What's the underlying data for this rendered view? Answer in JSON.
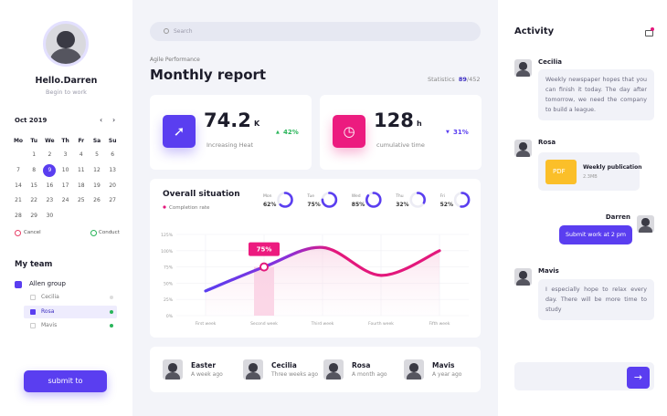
{
  "sidebar": {
    "greeting": "Hello.Darren",
    "subtitle": "Begin to work",
    "calendar": {
      "month": "Oct 2019",
      "weekdays": [
        "Mo",
        "Tu",
        "We",
        "Th",
        "Fr",
        "Sa",
        "Su"
      ],
      "days": [
        1,
        2,
        3,
        4,
        5,
        6,
        7,
        8,
        9,
        10,
        11,
        12,
        13,
        14,
        15,
        16,
        17,
        18,
        19,
        20,
        21,
        22,
        23,
        24,
        25,
        26,
        27,
        28,
        29,
        30
      ],
      "selected_day": 9,
      "cancel": "Cancel",
      "conduct": "Conduct"
    },
    "team": {
      "title": "My team",
      "group": "Allen group",
      "members": [
        "Cecilia",
        "Rosa",
        "Mavis"
      ],
      "selected_member": "Rosa"
    },
    "submit": "submit to"
  },
  "main": {
    "search_placeholder": "Search",
    "eyebrow": "Agile Performance",
    "title": "Monthly report",
    "statistics_label": "Statistics",
    "statistics_value": "89",
    "statistics_total": "/452",
    "cards": [
      {
        "value": "74.2",
        "unit": "K",
        "label": "Increasing Heat",
        "change": "42%",
        "direction": "up"
      },
      {
        "value": "128",
        "unit": "h",
        "label": "cumulative time",
        "change": "31%",
        "direction": "down"
      }
    ],
    "people": [
      {
        "name": "Easter",
        "time": "A week ago"
      },
      {
        "name": "Cecilia",
        "time": "Three weeks ago"
      },
      {
        "name": "Rosa",
        "time": "A month ago"
      },
      {
        "name": "Mavis",
        "time": "A year ago"
      }
    ]
  },
  "chart": {
    "type": "line",
    "title": "Overall situation",
    "legend": "Completion rate",
    "days": [
      {
        "day": "Mon",
        "value": 62,
        "label": "62%"
      },
      {
        "day": "Tue",
        "value": 75,
        "label": "75%"
      },
      {
        "day": "Wed",
        "value": 85,
        "label": "85%"
      },
      {
        "day": "Thu",
        "value": 32,
        "label": "32%"
      },
      {
        "day": "Fri",
        "value": 52,
        "label": "52%"
      }
    ],
    "categories": [
      "First week",
      "Second week",
      "Third week",
      "Fourth week",
      "Fifth week"
    ],
    "values": [
      38,
      75,
      105,
      62,
      100
    ],
    "highlight_label": "75%",
    "ylim": [
      0,
      125
    ],
    "yticks": [
      {
        "value": 0,
        "label": "0%"
      },
      {
        "value": 25,
        "label": "25%"
      },
      {
        "value": 50,
        "label": "50%"
      },
      {
        "value": 75,
        "label": "75%"
      },
      {
        "value": 100,
        "label": "100%"
      },
      {
        "value": 125,
        "label": "125%"
      }
    ],
    "grid": true
  },
  "activity": {
    "title": "Activity",
    "messages": [
      {
        "name": "Cecilia",
        "text": "Weekly newspaper hopes that you can finish it today. The day after tomorrow, we need the company to build a league."
      },
      {
        "name": "Rosa",
        "file_type": "PDF",
        "file_name": "Weekly publication",
        "file_size": "2.3MB"
      },
      {
        "name": "Darren",
        "text": "Submit work at 2 pm"
      },
      {
        "name": "Mavis",
        "text": "I especially hope to relax every day. There will be more time to study"
      }
    ]
  }
}
